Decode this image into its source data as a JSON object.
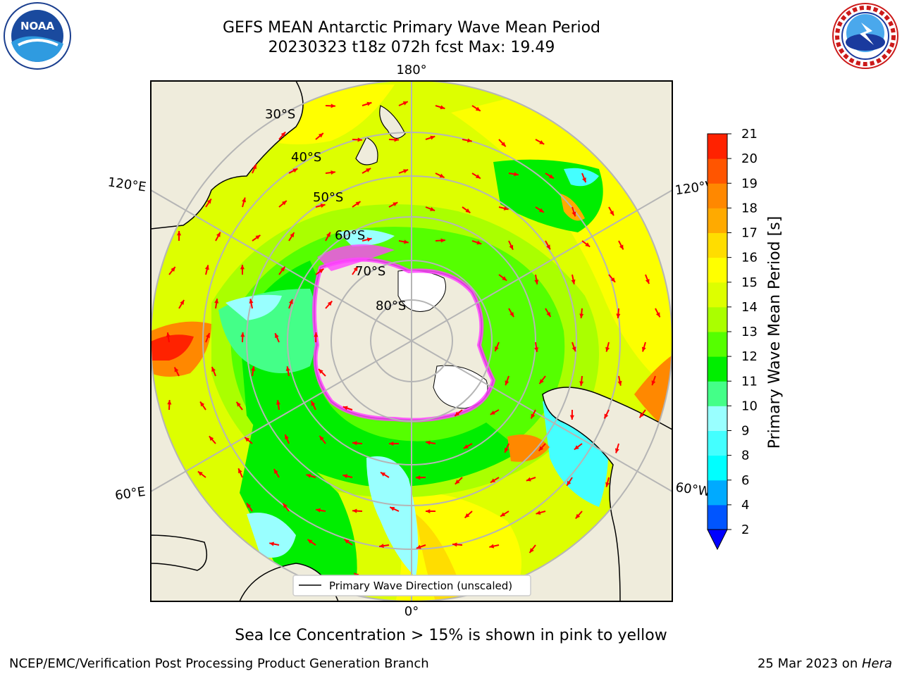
{
  "header": {
    "title_line1": "GEFS MEAN Antarctic Primary Wave Mean Period",
    "title_line2": "20230323 t18z 072h fcst   Max: 19.49"
  },
  "logos": {
    "left": "NOAA",
    "left_ring_text": "NATIONAL OCEANIC AND ATMOSPHERIC ADMINISTRATION · U.S. DEPARTMENT OF COMMERCE",
    "right_ring_text": "NATIONAL WEATHER SERVICE"
  },
  "map": {
    "longitude_labels": {
      "top": "180°",
      "bottom": "0°",
      "upper_left": "120°E",
      "upper_right": "120°W",
      "lower_left": "60°E",
      "lower_right": "60°W"
    },
    "latitude_labels": [
      "30°S",
      "40°S",
      "50°S",
      "60°S",
      "70°S",
      "80°S"
    ],
    "legend_label": "Primary Wave Direction (unscaled)",
    "colors": {
      "land": "#efecdc",
      "ice_sheet": "#ffffff",
      "sea_ice": "#ff44ff",
      "arrow": "#ff0000",
      "grid": "#b5b5b5"
    }
  },
  "colorbar": {
    "label": "Primary Wave Mean Period [s]",
    "ticks": [
      "2",
      "4",
      "6",
      "8",
      "9",
      "10",
      "11",
      "12",
      "13",
      "14",
      "15",
      "16",
      "17",
      "18",
      "19",
      "20",
      "21"
    ],
    "colors": [
      "#0055ff",
      "#00aaff",
      "#00ffff",
      "#44ffff",
      "#99ffff",
      "#44ff88",
      "#00ee00",
      "#55ff00",
      "#aaff00",
      "#ddff00",
      "#ffff00",
      "#ffdd00",
      "#ffaa00",
      "#ff8800",
      "#ff5500",
      "#ff2200"
    ],
    "extend_color": "#0000ff"
  },
  "footer": {
    "caption": "Sea Ice Concentration > 15% is shown in pink to yellow",
    "left": "NCEP/EMC/Verification Post Processing Product Generation Branch",
    "right_date": "25 Mar 2023 on ",
    "right_host": "Hera"
  }
}
